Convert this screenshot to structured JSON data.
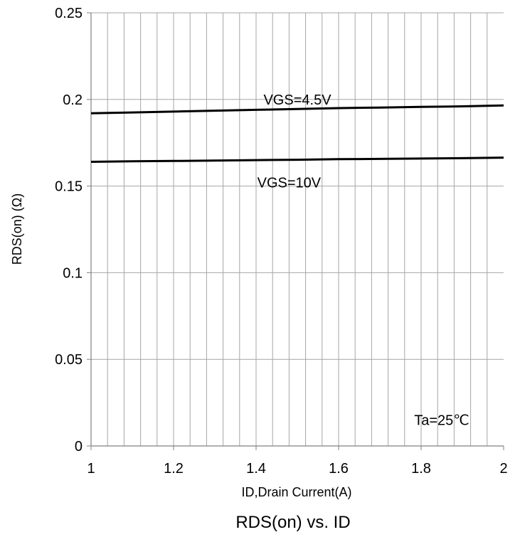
{
  "chart_data": {
    "type": "line",
    "title": "RDS(on) vs. ID",
    "xlabel": "ID,Drain Current(A)",
    "ylabel": "RDS(on) (Ω)",
    "xlim": [
      1,
      2
    ],
    "ylim": [
      0,
      0.25
    ],
    "xticks": [
      "1",
      "1.2",
      "1.4",
      "1.6",
      "1.8",
      "2"
    ],
    "yticks": [
      "0",
      "0.05",
      "0.1",
      "0.15",
      "0.2",
      "0.25"
    ],
    "x_minor_grid_step": 0.04,
    "grid": true,
    "series": [
      {
        "name": "VGS=4.5V",
        "x": [
          1.0,
          1.1,
          1.2,
          1.3,
          1.4,
          1.5,
          1.6,
          1.7,
          1.8,
          1.9,
          2.0
        ],
        "y": [
          0.192,
          0.1925,
          0.193,
          0.1935,
          0.194,
          0.1945,
          0.195,
          0.1953,
          0.1957,
          0.196,
          0.1965
        ]
      },
      {
        "name": "VGS=10V",
        "x": [
          1.0,
          1.1,
          1.2,
          1.3,
          1.4,
          1.5,
          1.6,
          1.7,
          1.8,
          1.9,
          2.0
        ],
        "y": [
          0.164,
          0.1643,
          0.1645,
          0.1647,
          0.165,
          0.1652,
          0.1655,
          0.1657,
          0.1659,
          0.1661,
          0.1664
        ]
      }
    ],
    "annotations": [
      {
        "text": "VGS=4.5V",
        "x": 1.5,
        "y": 0.2
      },
      {
        "text": "VGS=10V",
        "x": 1.48,
        "y": 0.152
      },
      {
        "text": "Ta=25℃",
        "x": 1.85,
        "y": 0.015
      }
    ]
  }
}
